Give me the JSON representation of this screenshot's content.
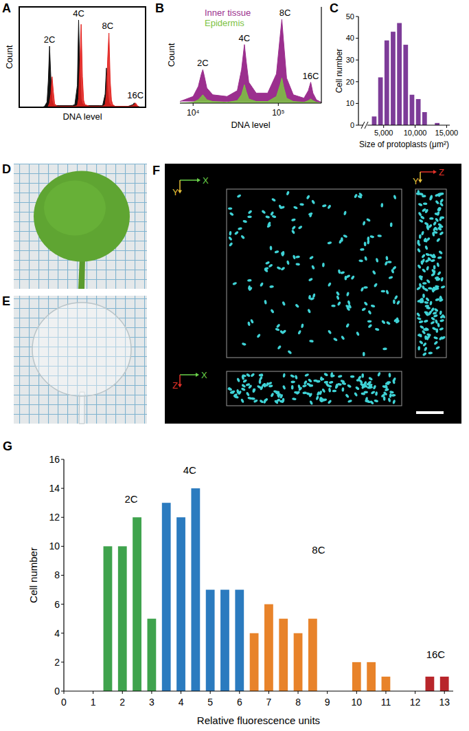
{
  "chart_data": [
    {
      "panel": "A",
      "type": "area",
      "y_label": "Count",
      "x_label": "DNA level",
      "tick_labels": false,
      "xlim": [
        0,
        100
      ],
      "ylim": [
        0,
        115
      ],
      "x": [
        0,
        18,
        20,
        22,
        23,
        24,
        25,
        26,
        27,
        28,
        30,
        32,
        42,
        44,
        46,
        47,
        48,
        49,
        50,
        51,
        52,
        54,
        56,
        64,
        66,
        68,
        69,
        70,
        71,
        72,
        73,
        74,
        76,
        78,
        86,
        88,
        90,
        91,
        92,
        93,
        94,
        96,
        100
      ],
      "series": [
        {
          "color": "#111111",
          "values": [
            0,
            0,
            1,
            6,
            30,
            70,
            35,
            8,
            3,
            2,
            2,
            2,
            2,
            3,
            25,
            100,
            45,
            10,
            4,
            3,
            2,
            2,
            2,
            2,
            2,
            15,
            45,
            20,
            6,
            3,
            2,
            2,
            1,
            1,
            1,
            2,
            3,
            5,
            3,
            1,
            1,
            0,
            0
          ]
        },
        {
          "color": "#e3201c",
          "values": [
            0,
            0,
            0,
            0,
            1,
            5,
            15,
            35,
            18,
            4,
            1,
            1,
            1,
            1,
            2,
            10,
            50,
            95,
            35,
            8,
            3,
            2,
            1,
            1,
            1,
            3,
            15,
            55,
            85,
            30,
            8,
            3,
            1,
            1,
            1,
            1,
            2,
            3,
            5,
            3,
            1,
            0,
            0
          ]
        }
      ],
      "annotations": [
        {
          "text": "2C",
          "x": 24,
          "y": 74
        },
        {
          "text": "4C",
          "x": 47,
          "y": 104
        },
        {
          "text": "8C",
          "x": 70,
          "y": 90
        },
        {
          "text": "16C",
          "x": 92,
          "y": 10
        }
      ]
    },
    {
      "panel": "B",
      "type": "area",
      "y_label": "Count",
      "x_label": "DNA level",
      "log": "x",
      "tick_labels": "x",
      "xlim": [
        7000,
        320000
      ],
      "ylim": [
        0,
        115
      ],
      "xticks": [
        {
          "value": 10000,
          "label": "10⁴"
        },
        {
          "value": 100000,
          "label": "10⁵"
        }
      ],
      "x": [
        7000,
        10000,
        11500,
        12500,
        13000,
        13500,
        14500,
        17000,
        25000,
        33000,
        37000,
        40000,
        42000,
        45000,
        55000,
        75000,
        95000,
        105000,
        110000,
        115000,
        125000,
        150000,
        200000,
        225000,
        240000,
        255000,
        280000,
        320000
      ],
      "series": [
        {
          "name": "Inner tissue",
          "color": "#9b2f8e",
          "values": [
            2,
            8,
            20,
            35,
            40,
            33,
            18,
            10,
            8,
            15,
            40,
            70,
            50,
            25,
            12,
            12,
            35,
            80,
            100,
            75,
            30,
            10,
            6,
            15,
            25,
            12,
            4,
            1
          ]
        },
        {
          "name": "Epidermis",
          "color": "#7cc242",
          "values": [
            0,
            1,
            4,
            8,
            10,
            8,
            4,
            2,
            1,
            3,
            10,
            22,
            14,
            5,
            2,
            2,
            8,
            22,
            30,
            20,
            6,
            2,
            1,
            3,
            5,
            3,
            1,
            0
          ]
        }
      ],
      "legend": "top-left",
      "annotations": [
        {
          "text": "2C",
          "x": 13000,
          "y": 44
        },
        {
          "text": "4C",
          "x": 40000,
          "y": 74
        },
        {
          "text": "8C",
          "x": 120000,
          "y": 104
        },
        {
          "text": "16C",
          "x": 240000,
          "y": 29
        }
      ]
    },
    {
      "panel": "C",
      "type": "histogram",
      "x_label": "Size of protoplasts (μm²)",
      "y_label": "Cell number",
      "bins": [
        3000,
        4000,
        5000,
        6000,
        7000,
        8000,
        9000,
        10000,
        11000,
        12000,
        13000,
        14000
      ],
      "values": [
        4,
        22,
        39,
        43,
        47,
        37,
        14,
        12,
        6,
        0,
        1
      ],
      "color": "#7d3c98",
      "xlim": [
        1000,
        15500
      ],
      "ylim": [
        0,
        50
      ],
      "xticks": [
        {
          "value": 5000,
          "label": "5,000"
        },
        {
          "value": 10000,
          "label": "10,000"
        },
        {
          "value": 15000,
          "label": "15,000"
        }
      ],
      "yticks": [
        0,
        10,
        20,
        30,
        40,
        50
      ]
    },
    {
      "panel": "G",
      "type": "bar",
      "x_label": "Relative fluorescence units",
      "y_label": "Cell number",
      "x": [
        1.5,
        2,
        2.5,
        3,
        3.5,
        4,
        4.5,
        5,
        5.5,
        6,
        6.5,
        7,
        7.5,
        8,
        8.5,
        10,
        10.5,
        11,
        12.5,
        13
      ],
      "values": [
        10,
        10,
        12,
        5,
        13,
        12,
        14,
        7,
        7,
        7,
        4,
        6,
        5,
        4,
        5,
        2,
        2,
        1,
        1,
        1
      ],
      "colors": [
        "#3fa34d",
        "#3fa34d",
        "#3fa34d",
        "#3fa34d",
        "#2b7bbf",
        "#2b7bbf",
        "#2b7bbf",
        "#2b7bbf",
        "#2b7bbf",
        "#2b7bbf",
        "#e8832a",
        "#e8832a",
        "#e8832a",
        "#e8832a",
        "#e8832a",
        "#e8832a",
        "#e8832a",
        "#e8832a",
        "#b8262b",
        "#b8262b"
      ],
      "xlim": [
        0,
        13.3
      ],
      "ylim": [
        0,
        16
      ],
      "xticks": [
        0,
        1,
        2,
        3,
        4,
        5,
        6,
        7,
        8,
        9,
        10,
        11,
        12,
        13
      ],
      "yticks": [
        0,
        2,
        4,
        6,
        8,
        10,
        12,
        14,
        16
      ],
      "annotations": [
        {
          "text": "2C",
          "x": 2.3,
          "y": 13
        },
        {
          "text": "4C",
          "x": 4.3,
          "y": 15
        },
        {
          "text": "8C",
          "x": 8.7,
          "y": 9.5
        },
        {
          "text": "16C",
          "x": 12.7,
          "y": 2.3
        }
      ]
    }
  ],
  "photos": [
    {
      "panel": "D"
    },
    {
      "panel": "E"
    }
  ],
  "volume": {
    "panel": "F",
    "views": [
      {
        "horizontal": {
          "label": "X",
          "color": "#6ad14a"
        },
        "vertical": {
          "label": "Y",
          "color": "#e6c13a"
        }
      },
      {
        "horizontal": {
          "label": "Z",
          "color": "#e3322a"
        },
        "vertical": {
          "label": "Y",
          "color": "#e6c13a"
        }
      },
      {
        "horizontal": {
          "label": "X",
          "color": "#6ad14a"
        },
        "vertical": {
          "label": "Z",
          "color": "#e3322a"
        }
      }
    ]
  }
}
